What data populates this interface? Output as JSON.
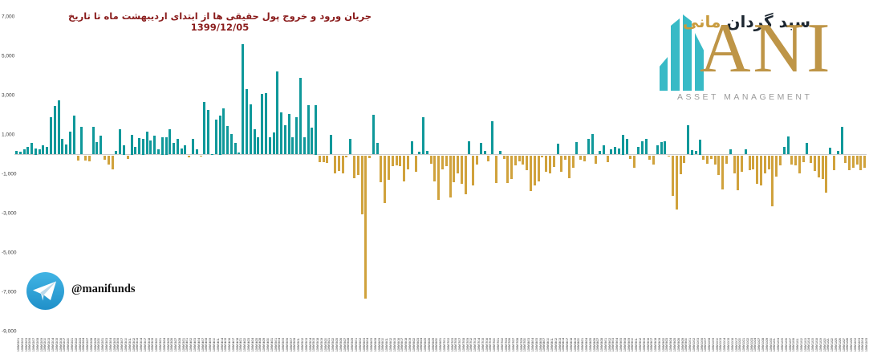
{
  "title": {
    "text": "جریان ورود و خروج پول حقیقی ها از ابتدای اردیبهشت ماه تا تاریخ 1399/12/05",
    "color": "#8a1c1c"
  },
  "y_axis": {
    "tick_labels": [
      "7,000",
      "5,000",
      "3,000",
      "1,000",
      "-1,000",
      "-3,000",
      "-5,000",
      "-7,000",
      "-9,000"
    ],
    "max": 7000,
    "min": -9000,
    "step": 2000
  },
  "telegram": {
    "handle": "@manifunds"
  },
  "logo": {
    "persian_name": "سبد گردان",
    "persian_accent": "مانی",
    "latin": "ANI",
    "subtitle": "ASSET MANAGEMENT",
    "teal": "#38bac6",
    "gold": "#be9547"
  },
  "chart_data": {
    "type": "bar",
    "title": "جریان ورود و خروج پول حقیقی ها از ابتدای اردیبهشت ماه تا تاریخ 1399/12/05",
    "ylabel": "",
    "xlabel": "",
    "ylim": [
      -9000,
      7000
    ],
    "grid": false,
    "positive_color": "#0f989a",
    "negative_color": "#d0a23c",
    "x": [
      "1399/02/01",
      "1399/02/02",
      "1399/02/03",
      "1399/02/06",
      "1399/02/07",
      "1399/02/08",
      "1399/02/09",
      "1399/02/10",
      "1399/02/13",
      "1399/02/14",
      "1399/02/15",
      "1399/02/16",
      "1399/02/17",
      "1399/02/20",
      "1399/02/21",
      "1399/02/22",
      "1399/02/23",
      "1399/02/24",
      "1399/02/27",
      "1399/02/28",
      "1399/02/29",
      "1399/02/30",
      "1399/02/31",
      "1399/03/03",
      "1399/03/04",
      "1399/03/05",
      "1399/03/06",
      "1399/03/07",
      "1399/03/10",
      "1399/03/11",
      "1399/03/12",
      "1399/03/13",
      "1399/03/14",
      "1399/03/17",
      "1399/03/18",
      "1399/03/19",
      "1399/03/20",
      "1399/03/21",
      "1399/03/24",
      "1399/03/25",
      "1399/03/26",
      "1399/03/27",
      "1399/03/28",
      "1399/03/31",
      "1399/04/01",
      "1399/04/02",
      "1399/04/03",
      "1399/04/04",
      "1399/04/07",
      "1399/04/08",
      "1399/04/09",
      "1399/04/10",
      "1399/04/11",
      "1399/04/14",
      "1399/04/15",
      "1399/04/16",
      "1399/04/17",
      "1399/04/18",
      "1399/04/21",
      "1399/04/22",
      "1399/04/23",
      "1399/04/24",
      "1399/04/25",
      "1399/04/28",
      "1399/04/29",
      "1399/04/30",
      "1399/04/31",
      "1399/05/01",
      "1399/05/04",
      "1399/05/05",
      "1399/05/06",
      "1399/05/07",
      "1399/05/08",
      "1399/05/11",
      "1399/05/12",
      "1399/05/13",
      "1399/05/14",
      "1399/05/15",
      "1399/05/18",
      "1399/05/19",
      "1399/05/20",
      "1399/05/21",
      "1399/05/22",
      "1399/05/25",
      "1399/05/26",
      "1399/05/27",
      "1399/05/28",
      "1399/05/29",
      "1399/06/01",
      "1399/06/02",
      "1399/06/03",
      "1399/06/04",
      "1399/06/05",
      "1399/06/08",
      "1399/06/09",
      "1399/06/10",
      "1399/06/11",
      "1399/06/12",
      "1399/06/15",
      "1399/06/16",
      "1399/06/17",
      "1399/06/18",
      "1399/06/19",
      "1399/06/22",
      "1399/06/23",
      "1399/06/24",
      "1399/06/25",
      "1399/06/26",
      "1399/06/29",
      "1399/06/30",
      "1399/06/31",
      "1399/07/01",
      "1399/07/02",
      "1399/07/05",
      "1399/07/06",
      "1399/07/07",
      "1399/07/08",
      "1399/07/09",
      "1399/07/12",
      "1399/07/13",
      "1399/07/14",
      "1399/07/15",
      "1399/07/16",
      "1399/07/19",
      "1399/07/20",
      "1399/07/21",
      "1399/07/22",
      "1399/07/23",
      "1399/07/26",
      "1399/07/27",
      "1399/07/28",
      "1399/07/29",
      "1399/07/30",
      "1399/08/03",
      "1399/08/04",
      "1399/08/05",
      "1399/08/06",
      "1399/08/07",
      "1399/08/10",
      "1399/08/11",
      "1399/08/12",
      "1399/08/13",
      "1399/08/14",
      "1399/08/17",
      "1399/08/18",
      "1399/08/19",
      "1399/08/20",
      "1399/08/21",
      "1399/08/24",
      "1399/08/25",
      "1399/08/26",
      "1399/08/27",
      "1399/08/28",
      "1399/09/01",
      "1399/09/02",
      "1399/09/03",
      "1399/09/04",
      "1399/09/05",
      "1399/09/08",
      "1399/09/09",
      "1399/09/10",
      "1399/09/11",
      "1399/09/12",
      "1399/09/15",
      "1399/09/16",
      "1399/09/17",
      "1399/09/18",
      "1399/09/19",
      "1399/09/22",
      "1399/09/23",
      "1399/09/24",
      "1399/09/25",
      "1399/09/26",
      "1399/09/29",
      "1399/09/30",
      "1399/10/01",
      "1399/10/02",
      "1399/10/03",
      "1399/10/06",
      "1399/10/07",
      "1399/10/08",
      "1399/10/09",
      "1399/10/10",
      "1399/10/13",
      "1399/10/14",
      "1399/10/15",
      "1399/10/16",
      "1399/10/17",
      "1399/10/20",
      "1399/10/21",
      "1399/10/22",
      "1399/10/23",
      "1399/10/24",
      "1399/10/27",
      "1399/10/28",
      "1399/10/29",
      "1399/10/30",
      "1399/11/01",
      "1399/11/04",
      "1399/11/05",
      "1399/11/06",
      "1399/11/07",
      "1399/11/08",
      "1399/11/11",
      "1399/11/12",
      "1399/11/13",
      "1399/11/14",
      "1399/11/15",
      "1399/11/18",
      "1399/11/19",
      "1399/11/20",
      "1399/11/21",
      "1399/11/22",
      "1399/11/25",
      "1399/11/26",
      "1399/11/27",
      "1399/11/28",
      "1399/11/29",
      "1399/12/02",
      "1399/12/03",
      "1399/12/04",
      "1399/12/05"
    ],
    "values": [
      200,
      140,
      260,
      370,
      610,
      310,
      270,
      450,
      370,
      1900,
      2470,
      2760,
      815,
      515,
      1155,
      1995,
      -260,
      1400,
      -260,
      -300,
      1425,
      650,
      950,
      -230,
      -460,
      -705,
      175,
      1300,
      490,
      -165,
      990,
      380,
      855,
      790,
      1170,
      730,
      940,
      260,
      870,
      870,
      1275,
      600,
      800,
      325,
      450,
      -100,
      800,
      260,
      -40,
      2675,
      2265,
      30,
      1790,
      2000,
      2360,
      1450,
      1045,
      600,
      95,
      5630,
      3310,
      2540,
      1275,
      880,
      3080,
      3135,
      880,
      1110,
      4235,
      2160,
      1480,
      2060,
      880,
      1915,
      3910,
      895,
      2495,
      1355,
      2510,
      -365,
      -365,
      -400,
      1020,
      -935,
      -800,
      -935,
      -120,
      785,
      -1155,
      -1005,
      -2985,
      -7290,
      -135,
      2035,
      610,
      -1385,
      -2445,
      -1250,
      -570,
      -500,
      -570,
      -1315,
      -705,
      690,
      -840,
      135,
      1915,
      175,
      -435,
      -1315,
      -2265,
      -705,
      -570,
      -2130,
      -1385,
      -900,
      -1450,
      -1970,
      680,
      -1520,
      -460,
      610,
      175,
      -300,
      1695,
      -1425,
      175,
      -200,
      -1425,
      -1220,
      -500,
      -300,
      -460,
      -775,
      -1830,
      -1520,
      -1315,
      -95,
      -840,
      -910,
      -600,
      555,
      -840,
      -230,
      -1155,
      -640,
      650,
      -230,
      -300,
      785,
      1060,
      -435,
      175,
      450,
      -365,
      270,
      380,
      300,
      990,
      785,
      -165,
      -640,
      380,
      690,
      785,
      -230,
      -460,
      450,
      650,
      690,
      -70,
      -2060,
      -2740,
      -975,
      -400,
      1505,
      245,
      175,
      745,
      -230,
      -435,
      -165,
      -460,
      -1020,
      -1725,
      -435,
      270,
      -910,
      -1790,
      -840,
      270,
      -775,
      -705,
      -1450,
      -1520,
      -905,
      -700,
      -2605,
      -1090,
      -500,
      380,
      900,
      -460,
      -530,
      -910,
      -365,
      610,
      -380,
      -790,
      -1110,
      -1195,
      -1900,
      340,
      -745,
      200,
      1425,
      -380,
      -745,
      -650,
      -475,
      -745,
      -650
    ]
  }
}
